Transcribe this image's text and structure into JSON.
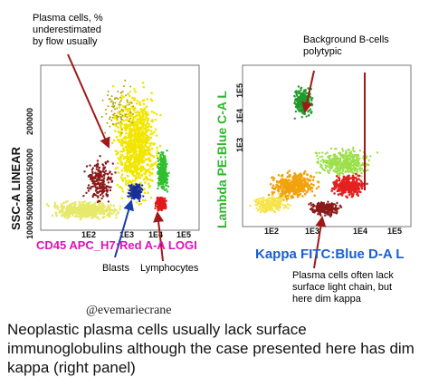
{
  "left_plot": {
    "y_axis_title": "SSC-A LINEAR",
    "x_axis_title": "CD45 APC_H7:Red A-A LOGI",
    "y_ticks": [
      "200000",
      "150000",
      "100000",
      "50000",
      "1000"
    ],
    "x_ticks": [
      "1E2",
      "1E3",
      "1E4",
      "1E5"
    ],
    "x_axis_color": "#e010b8"
  },
  "right_plot": {
    "y_axis_title": "Lambda PE:Blue C-A L",
    "x_axis_title": "Kappa FITC:Blue D-A L",
    "y_ticks": [
      "1E5",
      "1E4",
      "1E3"
    ],
    "x_ticks": [
      "1E2",
      "1E3",
      "1E4",
      "1E5"
    ],
    "y_axis_color": "#2fb82f",
    "x_axis_color": "#1a5fd1"
  },
  "annotations": {
    "plasma_cells_underestimated": "Plasma cells, %\nunderestimated\nby flow usually",
    "background_b_cells": "Background B-cells\npolytypic",
    "blasts": "Blasts",
    "lymphocytes": "Lymphocytes",
    "plasma_cells_lack_light_chain": "Plasma cells often lack\nsurface light chain, but\nhere dim kappa"
  },
  "handle": "@evemariecrane",
  "caption": "Neoplastic plasma cells usually lack surface immunoglobulins although the case presented here has dim kappa (right panel)",
  "colors": {
    "arrow": "#a11818",
    "arrow_blue": "#1a3ea8"
  }
}
